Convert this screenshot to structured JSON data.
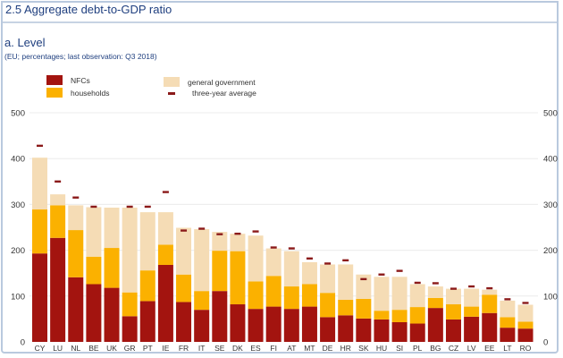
{
  "header": {
    "title": "2.5 Aggregate debt-to-GDP ratio",
    "subtitle": "a. Level",
    "note": "(EU; percentages; last observation: Q3 2018)"
  },
  "colors": {
    "nfcs": "#a3140f",
    "households": "#fbb100",
    "general_government": "#f5dcb5",
    "three_year_average": "#8b1a1a",
    "grid": "#ececec",
    "title": "#1f3f7f"
  },
  "chart_data": {
    "type": "bar",
    "stacked": true,
    "title": "2.5 Aggregate debt-to-GDP ratio",
    "subtitle": "a. Level",
    "note": "(EU; percentages; last observation: Q3 2018)",
    "xlabel": "",
    "ylabel": "",
    "ylim": [
      0,
      500
    ],
    "yticks": [
      0,
      100,
      200,
      300,
      400,
      500
    ],
    "grid": true,
    "legend_position": "top",
    "legend": [
      "NFCs",
      "households",
      "general government",
      "three-year average"
    ],
    "categories": [
      "CY",
      "LU",
      "NL",
      "BE",
      "UK",
      "GR",
      "PT",
      "IE",
      "FR",
      "IT",
      "SE",
      "DK",
      "ES",
      "FI",
      "AT",
      "MT",
      "DE",
      "HR",
      "SK",
      "HU",
      "SI",
      "PL",
      "BG",
      "CZ",
      "LV",
      "EE",
      "LT",
      "RO"
    ],
    "series": [
      {
        "name": "NFCs",
        "kind": "bar",
        "values": [
          193,
          227,
          141,
          126,
          118,
          56,
          89,
          168,
          87,
          70,
          111,
          82,
          72,
          77,
          72,
          77,
          54,
          58,
          51,
          49,
          43,
          40,
          74,
          49,
          55,
          63,
          31,
          29
        ]
      },
      {
        "name": "households",
        "kind": "bar",
        "values": [
          96,
          71,
          103,
          60,
          87,
          52,
          67,
          44,
          60,
          41,
          88,
          116,
          60,
          67,
          49,
          49,
          53,
          34,
          43,
          19,
          27,
          36,
          22,
          33,
          22,
          40,
          23,
          15
        ]
      },
      {
        "name": "general government",
        "kind": "bar",
        "values": [
          113,
          24,
          54,
          108,
          88,
          185,
          127,
          71,
          102,
          135,
          41,
          38,
          100,
          60,
          77,
          48,
          62,
          77,
          53,
          74,
          72,
          50,
          25,
          34,
          39,
          11,
          36,
          37
        ]
      },
      {
        "name": "three-year average",
        "kind": "marker",
        "values": [
          428,
          350,
          315,
          295,
          null,
          295,
          295,
          327,
          243,
          247,
          235,
          236,
          241,
          206,
          204,
          182,
          171,
          178,
          137,
          147,
          155,
          129,
          128,
          116,
          121,
          117,
          93,
          85
        ]
      }
    ]
  }
}
